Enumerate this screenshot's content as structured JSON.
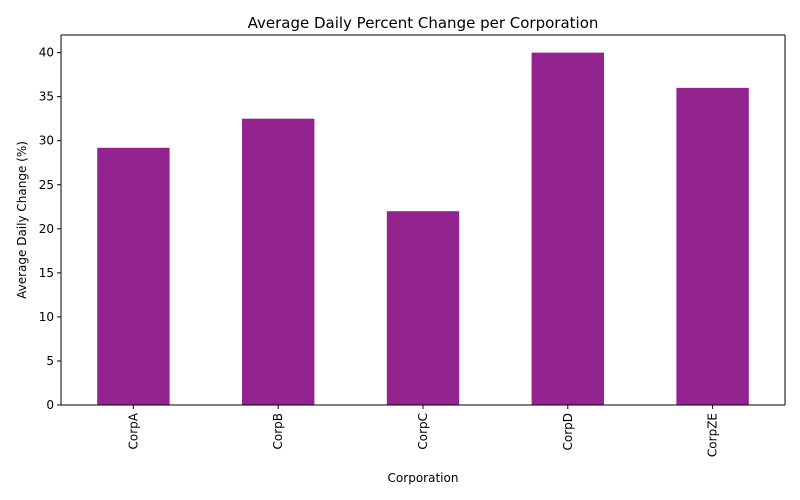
{
  "chart_data": {
    "type": "bar",
    "title": "Average Daily Percent Change per Corporation",
    "xlabel": "Corporation",
    "ylabel": "Average Daily Change (%)",
    "categories": [
      "CorpA",
      "CorpB",
      "CorpC",
      "CorpD",
      "CorpZE"
    ],
    "values": [
      29.2,
      32.5,
      22.0,
      40.0,
      36.0
    ],
    "ylim": [
      0,
      42
    ],
    "yticks": [
      0,
      5,
      10,
      15,
      20,
      25,
      30,
      35,
      40
    ],
    "bar_color": "#93248f",
    "grid": false,
    "legend": "none"
  }
}
